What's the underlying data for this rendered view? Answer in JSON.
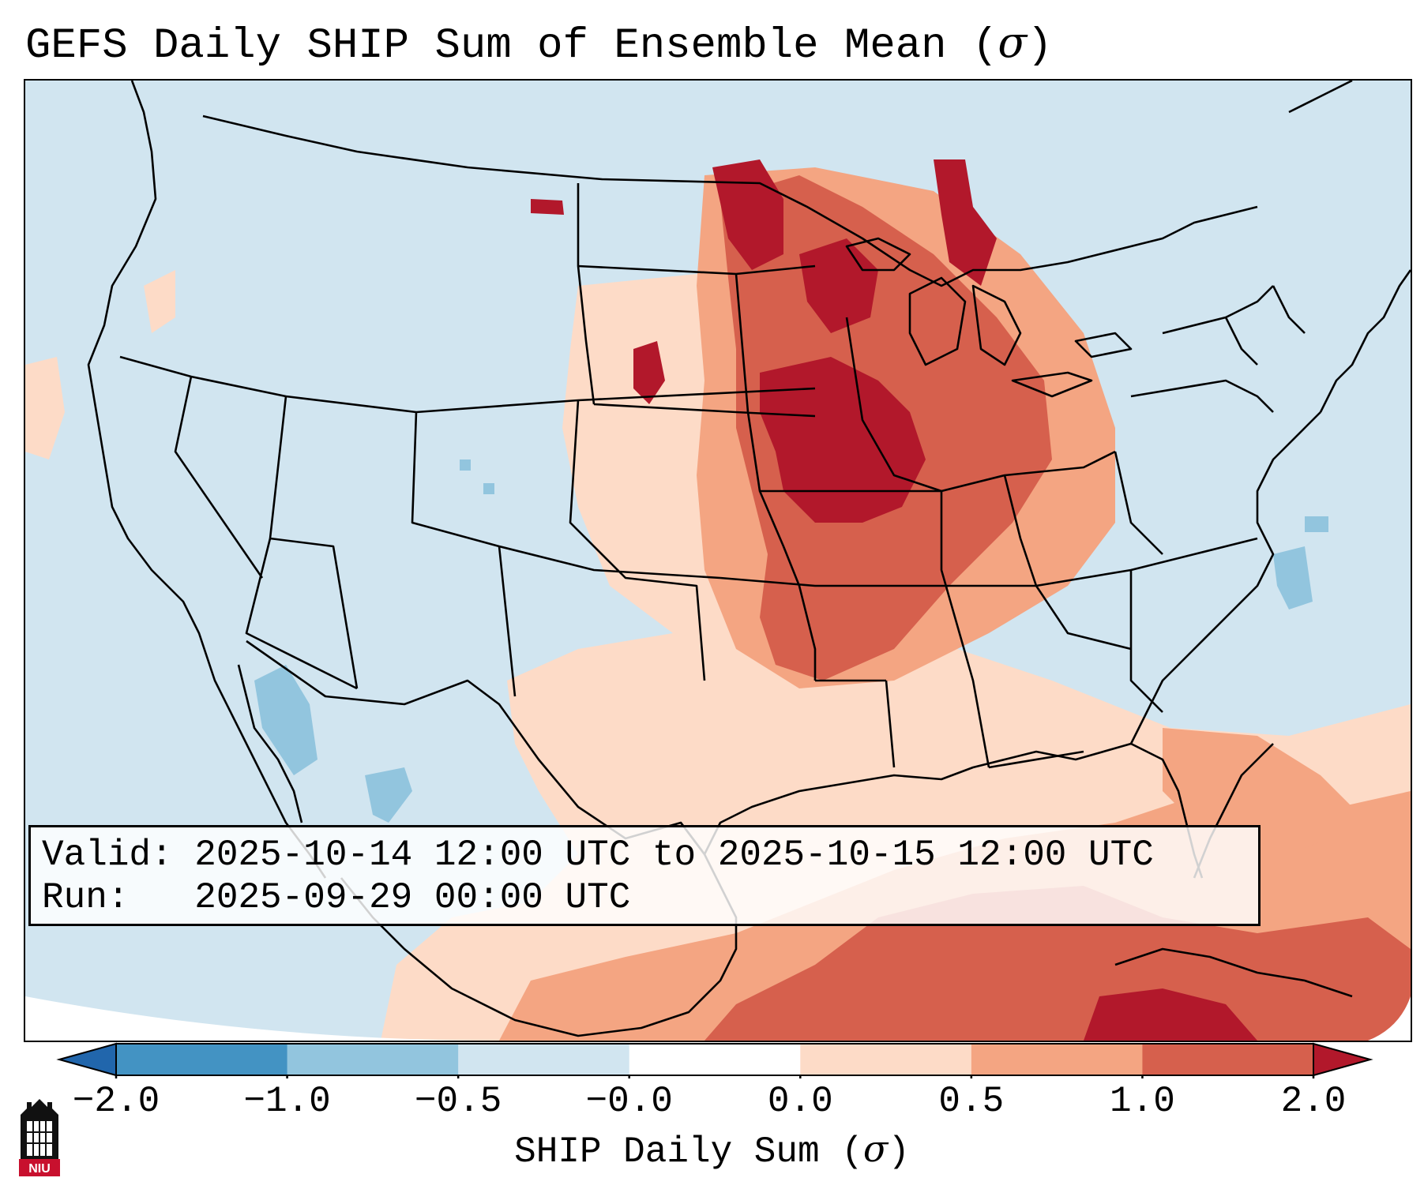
{
  "title": {
    "text": "GEFS Daily SHIP Sum of Ensemble Mean (",
    "sigma": "σ",
    "close": ")"
  },
  "info": {
    "valid_line": "Valid: 2025-10-14 12:00 UTC to 2025-10-15 12:00 UTC",
    "run_line": "Run:   2025-09-29 00:00 UTC"
  },
  "colorbar": {
    "label": "SHIP Daily Sum (",
    "label_sigma": "σ",
    "label_close": ")",
    "ticks": [
      "−2.0",
      "−1.0",
      "−0.5",
      "−0.0",
      "0.0",
      "0.5",
      "1.0",
      "2.0"
    ],
    "colors": [
      "#2166ac",
      "#4393c3",
      "#92c5de",
      "#d1e5f0",
      "#ffffff",
      "#fddbc7",
      "#f4a582",
      "#d6604d",
      "#b2182b"
    ]
  },
  "logo": {
    "text": "NIU"
  },
  "colors": {
    "background_anomaly": "#d1e5f0",
    "strong_positive": "#b2182b",
    "positive": "#d6604d",
    "weak_positive": "#f4a582",
    "slight_positive": "#fddbc7",
    "negative": "#92c5de"
  }
}
